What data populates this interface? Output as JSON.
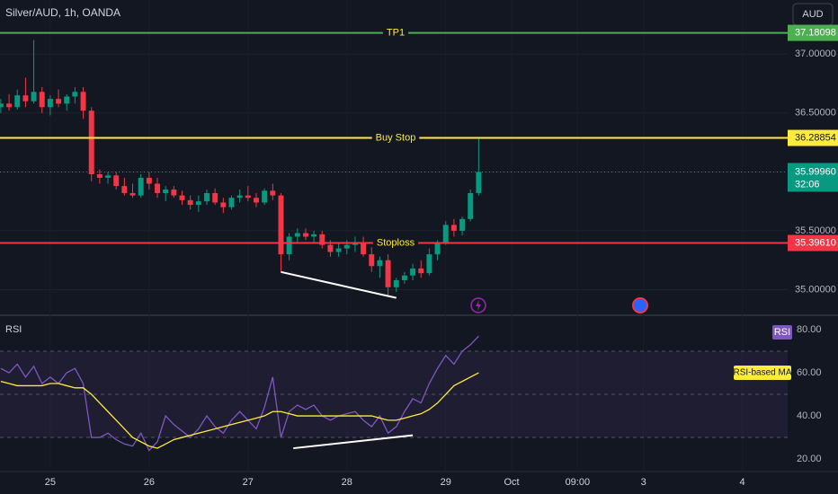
{
  "chart_data": {
    "type": "candlestick",
    "title": "Silver/AUD, 1h, OANDA",
    "currency": "AUD",
    "colors": {
      "up": "#089981",
      "down": "#f23645"
    },
    "x": [
      -12,
      -10,
      -8,
      -6,
      -4,
      -2,
      0,
      2,
      4,
      6,
      8,
      10,
      12,
      14,
      16,
      18,
      20,
      22,
      24,
      26,
      28,
      30,
      32,
      34,
      36,
      38,
      40,
      42,
      44,
      46,
      48,
      50,
      52,
      54,
      56,
      58,
      60,
      62,
      64,
      66,
      68,
      70,
      72,
      74,
      76,
      78,
      80,
      82,
      84,
      86,
      88,
      90,
      92,
      94,
      96,
      98,
      100,
      102,
      104
    ],
    "open": [
      36.55,
      36.58,
      36.55,
      36.65,
      36.6,
      36.68,
      36.55,
      36.62,
      36.58,
      36.64,
      36.68,
      36.52,
      35.98,
      35.95,
      35.97,
      35.88,
      35.82,
      35.8,
      35.95,
      35.9,
      35.82,
      35.85,
      35.8,
      35.76,
      35.72,
      35.75,
      35.82,
      35.74,
      35.7,
      35.78,
      35.8,
      35.78,
      35.74,
      35.84,
      35.8,
      35.3,
      35.45,
      35.48,
      35.45,
      35.47,
      35.38,
      35.32,
      35.35,
      35.38,
      35.4,
      35.3,
      35.2,
      35.25,
      35.02,
      35.08,
      35.12,
      35.18,
      35.14,
      35.3,
      35.4,
      35.55,
      35.5,
      35.6,
      35.82
    ],
    "high": [
      36.62,
      36.66,
      36.7,
      36.8,
      37.12,
      36.72,
      36.65,
      36.7,
      36.66,
      36.72,
      36.72,
      36.55,
      36.02,
      36.0,
      36.0,
      35.95,
      35.9,
      35.98,
      36.0,
      35.95,
      35.88,
      35.88,
      35.84,
      35.8,
      35.8,
      35.85,
      35.86,
      35.78,
      35.8,
      35.85,
      35.88,
      35.82,
      35.86,
      35.9,
      35.82,
      35.48,
      35.52,
      35.52,
      35.5,
      35.5,
      35.42,
      35.4,
      35.42,
      35.45,
      35.45,
      35.36,
      35.28,
      35.3,
      35.1,
      35.15,
      35.22,
      35.25,
      35.35,
      35.42,
      35.58,
      35.6,
      35.62,
      35.85,
      36.28
    ],
    "low": [
      36.5,
      36.52,
      36.53,
      36.55,
      36.58,
      36.5,
      36.48,
      36.55,
      36.52,
      36.58,
      36.45,
      35.92,
      35.9,
      35.9,
      35.85,
      35.8,
      35.78,
      35.78,
      35.85,
      35.78,
      35.75,
      35.78,
      35.72,
      35.68,
      35.66,
      35.72,
      35.72,
      35.65,
      35.68,
      35.74,
      35.75,
      35.7,
      35.72,
      35.76,
      35.15,
      35.25,
      35.4,
      35.42,
      35.4,
      35.35,
      35.28,
      35.28,
      35.3,
      35.32,
      35.28,
      35.15,
      35.1,
      34.95,
      34.98,
      35.05,
      35.08,
      35.1,
      35.12,
      35.25,
      35.38,
      35.45,
      35.46,
      35.58,
      35.8
    ],
    "close": [
      36.58,
      36.55,
      36.65,
      36.6,
      36.68,
      36.55,
      36.62,
      36.58,
      36.64,
      36.68,
      36.52,
      35.98,
      35.95,
      35.97,
      35.88,
      35.82,
      35.8,
      35.95,
      35.9,
      35.82,
      35.85,
      35.8,
      35.76,
      35.72,
      35.75,
      35.82,
      35.74,
      35.7,
      35.78,
      35.8,
      35.78,
      35.74,
      35.84,
      35.8,
      35.3,
      35.45,
      35.48,
      35.45,
      35.47,
      35.38,
      35.32,
      35.35,
      35.38,
      35.4,
      35.3,
      35.2,
      35.25,
      35.02,
      35.08,
      35.12,
      35.18,
      35.14,
      35.3,
      35.4,
      35.55,
      35.5,
      35.6,
      35.82,
      35.9996
    ],
    "xlim": [
      -12.2,
      179
    ],
    "xticks": [
      {
        "value": 0,
        "label": "25"
      },
      {
        "value": 24,
        "label": "26"
      },
      {
        "value": 48,
        "label": "27"
      },
      {
        "value": 72,
        "label": "28"
      },
      {
        "value": 96,
        "label": "29"
      },
      {
        "value": 112,
        "label": "Oct"
      },
      {
        "value": 128,
        "label": "09:00"
      },
      {
        "value": 144,
        "label": "3"
      },
      {
        "value": 168,
        "label": "4"
      }
    ],
    "ylim": [
      34.79,
      37.46
    ],
    "yticks": [
      {
        "value": 37,
        "label": "37.00000"
      },
      {
        "value": 36.5,
        "label": "36.50000"
      },
      {
        "value": 35.5,
        "label": "35.50000"
      },
      {
        "value": 35,
        "label": "35.00000"
      }
    ],
    "levels": [
      {
        "name": "TP1",
        "value": 37.18098,
        "color": "#4caf50"
      },
      {
        "name": "Buy Stop",
        "value": 36.28854,
        "color": "#ffeb3b"
      },
      {
        "name": "Stoploss",
        "value": 35.3961,
        "value_label": "35.39610",
        "color": "#f23645"
      }
    ],
    "current": {
      "value": 35.9996,
      "label": "35.99960",
      "countdown": "32:06",
      "color": "#089981"
    },
    "annotations": [
      {
        "x": [
          56,
          84
        ],
        "y": [
          35.15,
          34.93
        ],
        "color": "#ffffff"
      }
    ],
    "rsi": {
      "ylim": [
        14.2,
        86.25
      ],
      "yticks": [
        {
          "value": 80,
          "label": "80.00"
        },
        {
          "value": 60,
          "label": "60.00"
        },
        {
          "value": 40,
          "label": "40.00"
        },
        {
          "value": 20,
          "label": "20.00"
        }
      ],
      "bands": [
        70,
        50,
        30
      ],
      "series": [
        {
          "name": "RSI",
          "color": "#7e57c2",
          "values": [
            62,
            60,
            64,
            58,
            63,
            55,
            58,
            55,
            60,
            62,
            55,
            30,
            30,
            32,
            29,
            27,
            26,
            32,
            24,
            28,
            40,
            36,
            33,
            30,
            34,
            40,
            35,
            32,
            38,
            42,
            38,
            34,
            44,
            58,
            30,
            42,
            45,
            43,
            45,
            40,
            38,
            40,
            41,
            42,
            38,
            35,
            40,
            32,
            35,
            42,
            48,
            46,
            55,
            62,
            68,
            64,
            70,
            73,
            77
          ]
        },
        {
          "name": "RSI-based MA",
          "color": "#ffeb3b",
          "values": [
            56,
            55,
            54,
            54,
            54,
            54,
            55,
            55,
            54,
            53,
            53,
            50,
            46,
            42,
            38,
            34,
            30,
            28,
            26,
            25,
            27,
            29,
            30,
            31,
            32,
            33,
            34,
            35,
            36,
            37,
            38,
            39,
            40,
            42,
            42,
            41,
            40,
            40,
            40,
            40,
            40,
            40,
            40,
            40,
            40,
            40,
            39,
            38,
            38,
            39,
            40,
            41,
            43,
            46,
            50,
            54,
            56,
            58,
            60
          ]
        }
      ],
      "annotations": [
        {
          "x": [
            59,
            88
          ],
          "y": [
            25,
            31
          ],
          "color": "#ffffff"
        }
      ]
    }
  }
}
